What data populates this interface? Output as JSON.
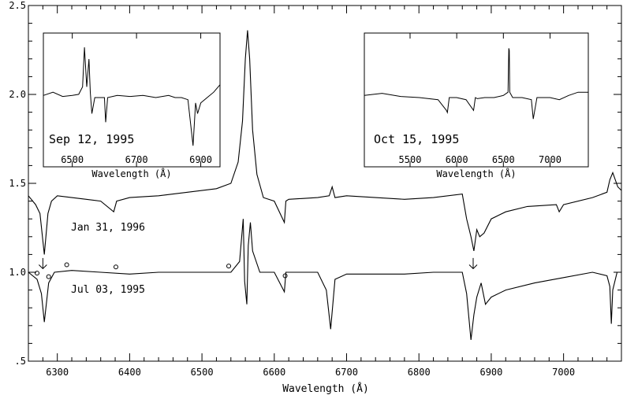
{
  "chart_data": [
    {
      "type": "line",
      "xlabel": "Wavelength (Å)",
      "ylabel": "",
      "xlim": [
        6260,
        7080
      ],
      "ylim": [
        0.5,
        2.5
      ],
      "xticks": [
        6300,
        6400,
        6500,
        6600,
        6700,
        6800,
        6900,
        7000
      ],
      "xtick_labels": [
        "6300",
        "6400",
        "6500",
        "6600",
        "6700",
        "6800",
        "6900",
        "7000"
      ],
      "yticks": [
        0.5,
        1.0,
        1.5,
        2.0,
        2.5
      ],
      "ytick_labels": [
        ".5",
        "1.0",
        "1.5",
        "2.0",
        "2.5"
      ],
      "grid": false,
      "series": [
        {
          "name": "Jan 31, 1996",
          "x": [
            6260,
            6270,
            6276,
            6282,
            6287,
            6292,
            6300,
            6320,
            6340,
            6360,
            6378,
            6382,
            6400,
            6440,
            6480,
            6520,
            6540,
            6550,
            6556,
            6560,
            6563,
            6566,
            6570,
            6576,
            6585,
            6600,
            6614,
            6616,
            6620,
            6660,
            6676,
            6680,
            6684,
            6700,
            6740,
            6780,
            6820,
            6860,
            6866,
            6872,
            6876,
            6880,
            6884,
            6890,
            6900,
            6920,
            6950,
            6990,
            6994,
            7000,
            7040,
            7060,
            7064,
            7068,
            7075,
            7080
          ],
          "y": [
            1.43,
            1.38,
            1.33,
            1.1,
            1.33,
            1.4,
            1.43,
            1.42,
            1.41,
            1.4,
            1.34,
            1.4,
            1.42,
            1.43,
            1.45,
            1.47,
            1.5,
            1.62,
            1.85,
            2.2,
            2.36,
            2.2,
            1.8,
            1.55,
            1.42,
            1.4,
            1.28,
            1.4,
            1.41,
            1.42,
            1.43,
            1.48,
            1.42,
            1.43,
            1.42,
            1.41,
            1.42,
            1.44,
            1.3,
            1.2,
            1.12,
            1.24,
            1.2,
            1.22,
            1.3,
            1.34,
            1.37,
            1.38,
            1.34,
            1.38,
            1.42,
            1.45,
            1.52,
            1.56,
            1.48,
            1.46
          ]
        },
        {
          "name": "Jul 03, 1995",
          "x": [
            6260,
            6272,
            6278,
            6282,
            6288,
            6296,
            6320,
            6360,
            6400,
            6440,
            6480,
            6520,
            6540,
            6552,
            6557,
            6559,
            6562,
            6564,
            6567,
            6570,
            6580,
            6600,
            6614,
            6616,
            6620,
            6660,
            6672,
            6678,
            6684,
            6700,
            6740,
            6780,
            6820,
            6860,
            6866,
            6872,
            6876,
            6880,
            6886,
            6892,
            6900,
            6920,
            6960,
            7000,
            7040,
            7060,
            7064,
            7066,
            7068,
            7074,
            7080
          ],
          "y": [
            1.0,
            0.96,
            0.88,
            0.72,
            0.94,
            1.0,
            1.01,
            1.0,
            0.99,
            1.0,
            1.0,
            1.0,
            1.0,
            1.06,
            1.3,
            0.95,
            0.82,
            1.15,
            1.28,
            1.12,
            1.0,
            1.0,
            0.89,
            1.0,
            1.0,
            1.0,
            0.9,
            0.68,
            0.96,
            0.99,
            0.99,
            0.99,
            1.0,
            1.0,
            0.88,
            0.62,
            0.76,
            0.86,
            0.94,
            0.82,
            0.86,
            0.9,
            0.94,
            0.97,
            1.0,
            0.98,
            0.92,
            0.71,
            0.9,
            1.0,
            1.0
          ]
        }
      ],
      "markers": {
        "circles_x": [
          6272,
          6288,
          6313,
          6381,
          6537,
          6615
        ],
        "arrows_x": [
          6280,
          6875
        ]
      }
    },
    {
      "type": "line",
      "annotation": "Sep 12, 1995",
      "xlabel": "Wavelength (Å)",
      "xlim": [
        6410,
        6960
      ],
      "ylim": [
        0,
        1
      ],
      "xticks": [
        6500,
        6700,
        6900
      ],
      "xtick_labels": [
        "6500",
        "6700",
        "6900"
      ],
      "series": [
        {
          "x": [
            6410,
            6440,
            6470,
            6500,
            6520,
            6532,
            6538,
            6545,
            6552,
            6556,
            6561,
            6570,
            6590,
            6600,
            6604,
            6610,
            6640,
            6680,
            6720,
            6760,
            6800,
            6820,
            6840,
            6860,
            6876,
            6884,
            6890,
            6900,
            6920,
            6940,
            6960
          ],
          "y": [
            0.52,
            0.55,
            0.51,
            0.52,
            0.53,
            0.6,
            0.97,
            0.6,
            0.86,
            0.55,
            0.35,
            0.5,
            0.5,
            0.5,
            0.27,
            0.5,
            0.52,
            0.51,
            0.52,
            0.5,
            0.52,
            0.5,
            0.5,
            0.48,
            0.05,
            0.45,
            0.35,
            0.45,
            0.5,
            0.55,
            0.62
          ]
        }
      ]
    },
    {
      "type": "line",
      "annotation": "Oct 15, 1995",
      "xlabel": "Wavelength (Å)",
      "xlim": [
        5010,
        7410
      ],
      "ylim": [
        0,
        1
      ],
      "xticks": [
        5500,
        6000,
        6500,
        7000
      ],
      "xtick_labels": [
        "5500",
        "6000",
        "6500",
        "7000"
      ],
      "series": [
        {
          "x": [
            5010,
            5200,
            5400,
            5600,
            5800,
            5890,
            5900,
            5920,
            6000,
            6100,
            6180,
            6200,
            6220,
            6300,
            6400,
            6500,
            6550,
            6558,
            6563,
            6568,
            6600,
            6700,
            6800,
            6820,
            6860,
            6900,
            7000,
            7100,
            7200,
            7300,
            7410
          ],
          "y": [
            0.52,
            0.54,
            0.51,
            0.5,
            0.48,
            0.38,
            0.36,
            0.5,
            0.5,
            0.48,
            0.38,
            0.5,
            0.49,
            0.5,
            0.5,
            0.52,
            0.55,
            0.96,
            0.94,
            0.55,
            0.5,
            0.5,
            0.48,
            0.3,
            0.5,
            0.5,
            0.5,
            0.48,
            0.52,
            0.55,
            0.55
          ]
        }
      ]
    }
  ]
}
